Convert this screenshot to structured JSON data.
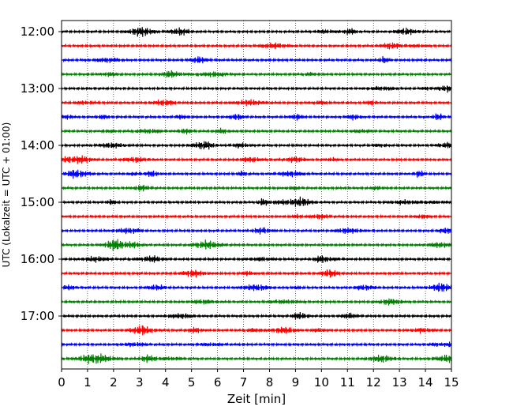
{
  "chart_data": {
    "type": "line",
    "title": "",
    "xlabel": "Zeit  [min]",
    "ylabel": "UTC (Lokalzeit = UTC + 01:00)",
    "xlim": [
      0,
      15
    ],
    "x_ticks": [
      "0",
      "1",
      "2",
      "3",
      "4",
      "5",
      "6",
      "7",
      "8",
      "9",
      "10",
      "11",
      "12",
      "13",
      "14",
      "15"
    ],
    "y_tick_labels": [
      "12:00",
      "13:00",
      "14:00",
      "15:00",
      "16:00",
      "17:00"
    ],
    "rows_per_hour": 4,
    "row_count": 24,
    "grid": "vertical dotted lines at each minute",
    "series_colors": [
      "#000000",
      "#ff0000",
      "#0000ff",
      "#008000"
    ]
  }
}
